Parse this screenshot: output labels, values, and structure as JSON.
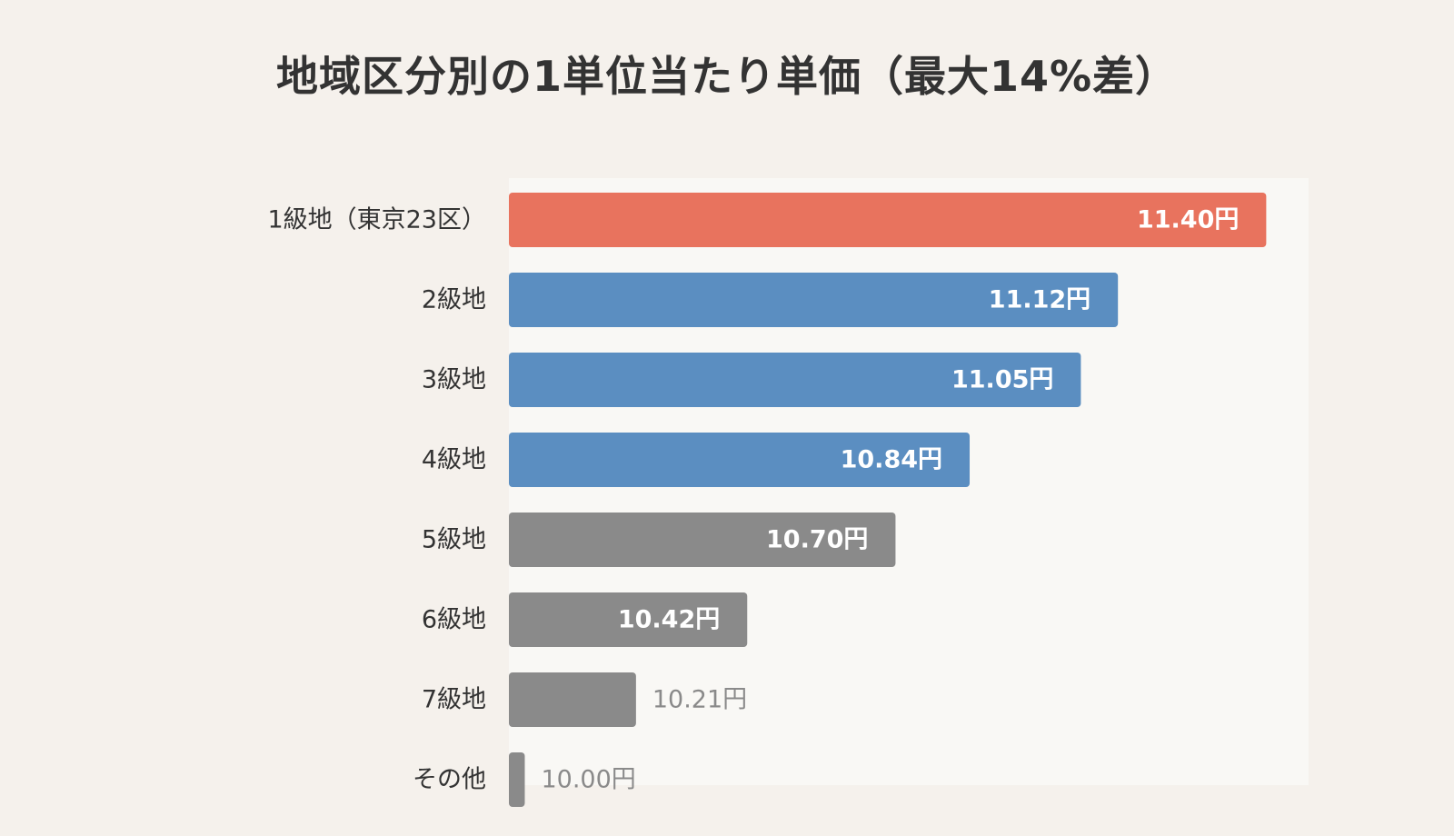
{
  "title": "地域区分別の1単位当たり単価（最大14%差）",
  "colors": {
    "highlight": "#e8735e",
    "upper": "#5b8ec1",
    "lower": "#8a8a8a",
    "background": "#f5f1ec",
    "plot_background": "#f9f8f5"
  },
  "chart_data": {
    "type": "bar",
    "orientation": "horizontal",
    "title": "地域区分別の1単位当たり単価（最大14%差）",
    "categories": [
      "1級地（東京23区）",
      "2級地",
      "3級地",
      "4級地",
      "5級地",
      "6級地",
      "7級地",
      "その他"
    ],
    "values": [
      11.4,
      11.12,
      11.05,
      10.84,
      10.7,
      10.42,
      10.21,
      10.0
    ],
    "value_labels": [
      "11.40円",
      "11.12円",
      "11.05円",
      "10.84円",
      "10.70円",
      "10.42円",
      "10.21円",
      "10.00円"
    ],
    "bar_colors": [
      "#e8735e",
      "#5b8ec1",
      "#5b8ec1",
      "#5b8ec1",
      "#8a8a8a",
      "#8a8a8a",
      "#8a8a8a",
      "#8a8a8a"
    ],
    "xlim": [
      9.97,
      11.48
    ],
    "grid": false,
    "legend": "none",
    "xlabel": "",
    "ylabel": ""
  }
}
